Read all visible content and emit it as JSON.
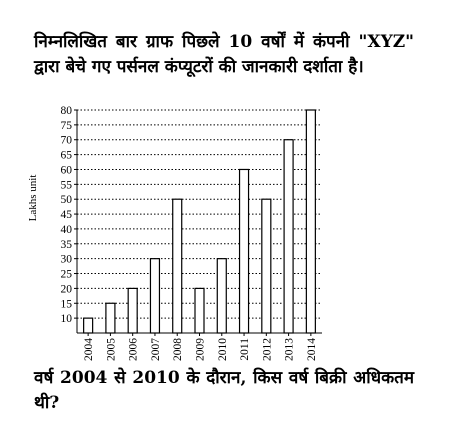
{
  "question": {
    "intro": "निम्नलिखित बार ग्राफ पिछले 10 वर्षों में कंपनी \"XYZ\" द्वारा बेचे गए पर्सनल कंप्यूटरों की जानकारी दर्शाता है।",
    "text": "वर्ष 2004 से 2010 के दौरान, किस वर्ष बिक्री अधिकतम थी?"
  },
  "chart_data": {
    "type": "bar",
    "title": "",
    "xlabel": "",
    "ylabel": "Lakhs unit",
    "categories": [
      "2004",
      "2005",
      "2006",
      "2007",
      "2008",
      "2009",
      "2010",
      "2011",
      "2012",
      "2013",
      "2014"
    ],
    "values": [
      10,
      15,
      20,
      30,
      50,
      20,
      30,
      60,
      50,
      70,
      80
    ],
    "yticks": [
      10,
      15,
      20,
      25,
      30,
      35,
      40,
      45,
      50,
      55,
      60,
      65,
      70,
      75,
      80
    ],
    "ylim": [
      5,
      80
    ],
    "grid": "horizontal-dotted",
    "bar_fill": "#ffffff",
    "bar_stroke": "#000000"
  }
}
